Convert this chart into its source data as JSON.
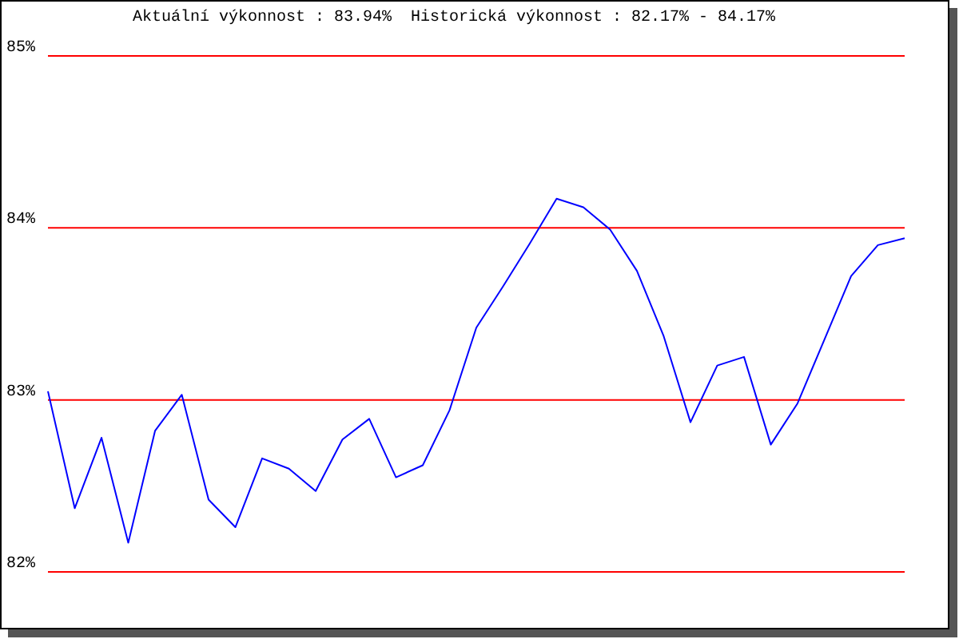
{
  "chart_data": {
    "type": "line",
    "title": "Aktuální výkonnost : 83.94%  Historická výkonnost : 82.17% - 84.17%",
    "categories": [
      null,
      null,
      null,
      null,
      null,
      null,
      null,
      null,
      null,
      null,
      null,
      null,
      null,
      null,
      null,
      null,
      null,
      null,
      null,
      null,
      null,
      null,
      null,
      null,
      null,
      null,
      null,
      null,
      null,
      null,
      null,
      null,
      null
    ],
    "series": [
      {
        "color": "#0000ff",
        "values": [
          83.05,
          82.37,
          82.78,
          82.17,
          82.82,
          83.03,
          82.42,
          82.26,
          82.66,
          82.6,
          82.47,
          82.77,
          82.89,
          82.55,
          82.62,
          82.94,
          83.42,
          83.66,
          83.91,
          84.17,
          84.12,
          83.99,
          83.75,
          83.37,
          82.87,
          83.2,
          83.25,
          82.74,
          82.98,
          83.35,
          83.72,
          83.9,
          83.94
        ]
      }
    ],
    "ylim": [
      82,
      85
    ],
    "yticks": [
      {
        "value": 82,
        "label": "82%"
      },
      {
        "value": 83,
        "label": "83%"
      },
      {
        "value": 84,
        "label": "84%"
      },
      {
        "value": 85,
        "label": "85%"
      }
    ],
    "grid": "y",
    "tick_labels": "y",
    "marker": "none",
    "line_style": "solid"
  }
}
